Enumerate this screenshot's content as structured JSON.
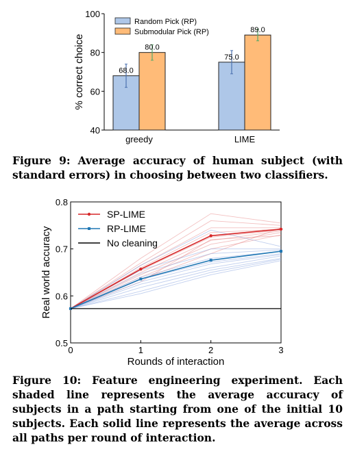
{
  "figure9": {
    "caption": "Figure 9: Average accuracy of human subject (with standard errors) in choosing between two classifiers.",
    "chart_data": {
      "type": "bar",
      "categories": [
        "greedy",
        "LIME"
      ],
      "series": [
        {
          "name": "Random Pick (RP)",
          "values": [
            68.0,
            75.0
          ],
          "errors": [
            6.0,
            6.0
          ],
          "color": "#aec7e8",
          "err_color": "#4c72b0"
        },
        {
          "name": "Submodular Pick (RP)",
          "values": [
            80.0,
            89.0
          ],
          "errors": [
            4.0,
            3.0
          ],
          "color": "#ffbb78",
          "err_color": "#55a868"
        }
      ],
      "value_labels": [
        [
          "68.0",
          "75.0"
        ],
        [
          "80.0",
          "89.0"
        ]
      ],
      "ylabel": "% correct choice",
      "ylim": [
        40,
        100
      ],
      "yticks": [
        "40",
        "60",
        "80",
        "100"
      ],
      "legend": "top-left"
    }
  },
  "figure10": {
    "caption": "Figure 10: Feature engineering experiment. Each shaded line represents the average accuracy of subjects in a path starting from one of the initial 10 subjects. Each solid line represents the average across all paths per round of interaction.",
    "chart_data": {
      "type": "line",
      "x": [
        0,
        1,
        2,
        3
      ],
      "xticks": [
        "0",
        "1",
        "2",
        "3"
      ],
      "yticks": [
        "0.5",
        "0.6",
        "0.7",
        "0.8"
      ],
      "xlabel": "Rounds of interaction",
      "ylabel": "Real world accuracy",
      "xlim": [
        0,
        3
      ],
      "ylim": [
        0.5,
        0.8
      ],
      "legend": "top-left",
      "series": [
        {
          "name": "SP-LIME",
          "values": [
            0.573,
            0.657,
            0.728,
            0.742
          ],
          "color": "#d62728",
          "marker": "circle"
        },
        {
          "name": "RP-LIME",
          "values": [
            0.573,
            0.636,
            0.676,
            0.695
          ],
          "color": "#1f77b4",
          "marker": "square"
        },
        {
          "name": "No cleaning",
          "values": [
            0.573,
            0.573,
            0.573,
            0.573
          ],
          "color": "#000000",
          "marker": "none"
        }
      ],
      "shaded_sp": [
        [
          0.573,
          0.68,
          0.775,
          0.755
        ],
        [
          0.573,
          0.67,
          0.76,
          0.75
        ],
        [
          0.573,
          0.665,
          0.745,
          0.745
        ],
        [
          0.573,
          0.66,
          0.735,
          0.742
        ],
        [
          0.573,
          0.655,
          0.725,
          0.74
        ],
        [
          0.573,
          0.65,
          0.718,
          0.738
        ],
        [
          0.573,
          0.645,
          0.71,
          0.735
        ],
        [
          0.573,
          0.64,
          0.7,
          0.73
        ],
        [
          0.573,
          0.635,
          0.69,
          0.745
        ],
        [
          0.573,
          0.63,
          0.72,
          0.728
        ]
      ],
      "shaded_rp": [
        [
          0.573,
          0.665,
          0.74,
          0.705
        ],
        [
          0.573,
          0.655,
          0.7,
          0.7
        ],
        [
          0.573,
          0.648,
          0.69,
          0.698
        ],
        [
          0.573,
          0.64,
          0.68,
          0.695
        ],
        [
          0.573,
          0.635,
          0.672,
          0.69
        ],
        [
          0.573,
          0.63,
          0.668,
          0.688
        ],
        [
          0.573,
          0.625,
          0.66,
          0.685
        ],
        [
          0.573,
          0.618,
          0.655,
          0.68
        ],
        [
          0.573,
          0.61,
          0.65,
          0.678
        ],
        [
          0.573,
          0.605,
          0.645,
          0.675
        ]
      ]
    }
  }
}
